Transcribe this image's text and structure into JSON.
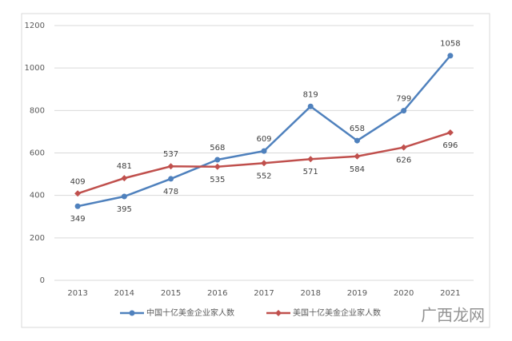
{
  "chart_data": {
    "type": "line",
    "categories": [
      "2013",
      "2014",
      "2015",
      "2016",
      "2017",
      "2018",
      "2019",
      "2020",
      "2021"
    ],
    "series": [
      {
        "name": "中国十亿美金企业家人数",
        "color": "#4f81bd",
        "marker": "circle",
        "values": [
          349,
          395,
          478,
          568,
          609,
          819,
          658,
          799,
          1058
        ]
      },
      {
        "name": "美国十亿美金企业家人数",
        "color": "#c0504d",
        "marker": "diamond",
        "values": [
          409,
          481,
          537,
          535,
          552,
          571,
          584,
          626,
          696
        ]
      }
    ],
    "ylim": [
      0,
      1200
    ],
    "yticks": [
      0,
      200,
      400,
      600,
      800,
      1000,
      1200
    ],
    "grid": true,
    "legend": "bottom",
    "watermark": "广西龙网"
  }
}
